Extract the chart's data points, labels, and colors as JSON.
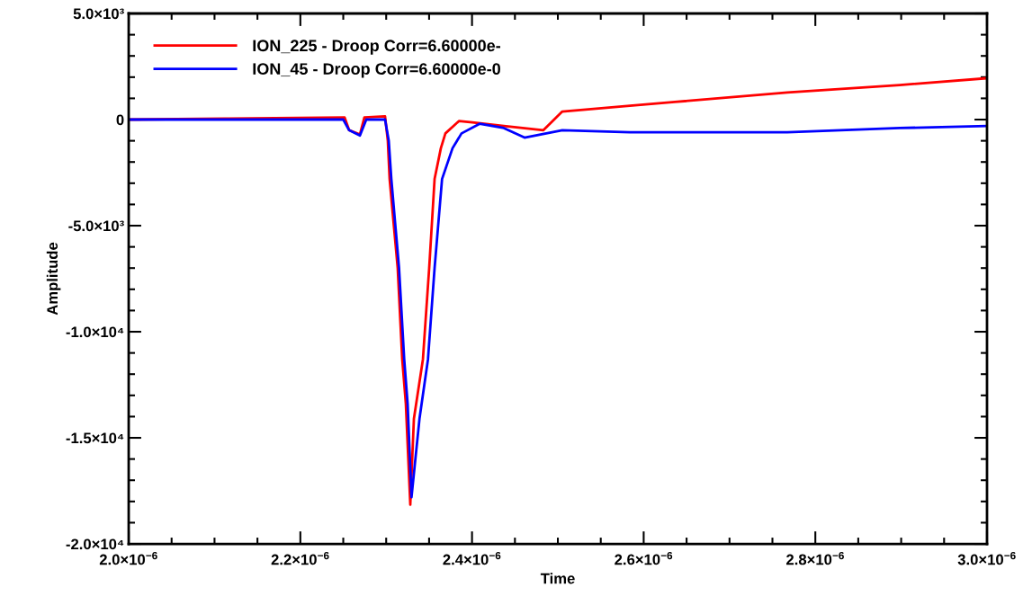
{
  "chart_data": {
    "type": "line",
    "xlabel": "Time",
    "ylabel": "Amplitude",
    "xlim": [
      2e-06,
      3e-06
    ],
    "xticks": [
      {
        "value": 2e-06,
        "label": "2.0×10$^{−6}$"
      },
      {
        "value": 2.2e-06,
        "label": "2.2×10$^{−6}$"
      },
      {
        "value": 2.4e-06,
        "label": "2.4×10$^{−6}$"
      },
      {
        "value": 2.6e-06,
        "label": "2.6×10$^{−6}$"
      },
      {
        "value": 2.8e-06,
        "label": "2.8×10$^{−6}$"
      },
      {
        "value": 3e-06,
        "label": "3.0×10$^{−6}$"
      }
    ],
    "ylim": [
      -20000,
      5000
    ],
    "yticks": [
      {
        "value": 5000,
        "label": "5.0×10³"
      },
      0,
      {
        "value": -5000,
        "label": "-5.0×10³"
      },
      {
        "value": -10000,
        "label": "-1.0×10⁴"
      },
      {
        "value": -15000,
        "label": "-1.5×10⁴"
      },
      {
        "value": -20000,
        "label": "-2.0×10⁴"
      }
    ],
    "legend": "top left",
    "grid": false,
    "marker": "none",
    "line_style": "solid",
    "series": [
      {
        "name": "ION_225 - Droop Corr=6.60000e-",
        "color": "#ff0000",
        "x": [
          2e-06,
          2.1122e-06,
          2.2516e-06,
          2.2568e-06,
          2.2694e-06,
          2.2746e-06,
          2.2987e-06,
          2.3019e-06,
          2.304e-06,
          2.3134e-06,
          2.3187e-06,
          2.3229e-06,
          2.3281e-06,
          2.3323e-06,
          2.3428e-06,
          2.3501e-06,
          2.3564e-06,
          2.3637e-06,
          2.369e-06,
          2.3847e-06,
          2.4004e-06,
          2.4371e-06,
          2.4832e-06,
          2.5052e-06,
          2.5839e-06,
          2.6363e-06,
          2.7673e-06,
          2.8983e-06,
          3e-06
        ],
        "values": [
          0,
          50,
          100,
          -500,
          -700,
          100,
          150,
          -1000,
          -2800,
          -7000,
          -11300,
          -13400,
          -18150,
          -14100,
          -11300,
          -7000,
          -2800,
          -1350,
          -650,
          -70,
          -130,
          -300,
          -500,
          380,
          650,
          830,
          1280,
          1630,
          1950
        ]
      },
      {
        "name": "ION_45 - Droop Corr=6.60000e-0",
        "color": "#0000ff",
        "x": [
          2e-06,
          2.1122e-06,
          2.25e-06,
          2.2568e-06,
          2.2694e-06,
          2.2768e-06,
          2.2987e-06,
          2.303e-06,
          2.306e-06,
          2.315e-06,
          2.321e-06,
          2.325e-06,
          2.3295e-06,
          2.3388e-06,
          2.3487e-06,
          2.3564e-06,
          2.3651e-06,
          2.3773e-06,
          2.3878e-06,
          2.4088e-06,
          2.4371e-06,
          2.4612e-06,
          2.5052e-06,
          2.5839e-06,
          2.6363e-06,
          2.7673e-06,
          2.8983e-06,
          3e-06
        ],
        "values": [
          0,
          0,
          0,
          -500,
          -750,
          0,
          0,
          -1000,
          -2800,
          -7000,
          -11300,
          -13400,
          -17800,
          -14100,
          -11300,
          -7000,
          -2800,
          -1350,
          -650,
          -200,
          -400,
          -850,
          -500,
          -600,
          -600,
          -600,
          -400,
          -300
        ]
      }
    ]
  }
}
